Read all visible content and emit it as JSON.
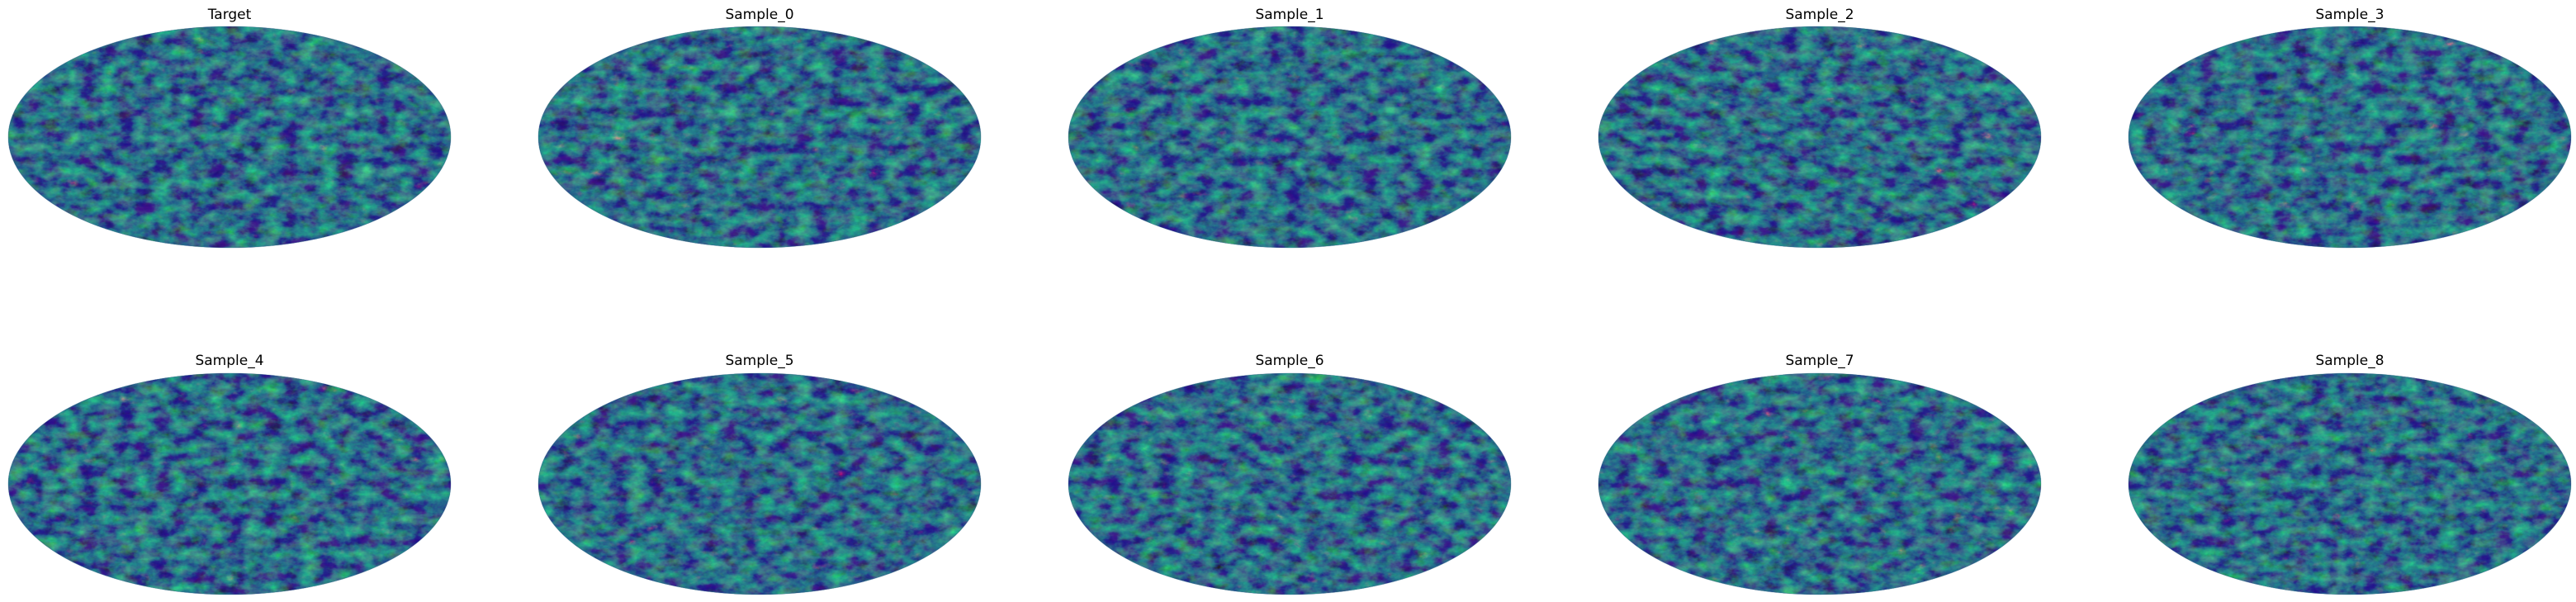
{
  "figure": {
    "colormap": "viridis",
    "projection": "mollweide",
    "panels": [
      {
        "title": "Target"
      },
      {
        "title": "Sample_0"
      },
      {
        "title": "Sample_1"
      },
      {
        "title": "Sample_2"
      },
      {
        "title": "Sample_3"
      },
      {
        "title": "Sample_4"
      },
      {
        "title": "Sample_5"
      },
      {
        "title": "Sample_6"
      },
      {
        "title": "Sample_7"
      },
      {
        "title": "Sample_8"
      }
    ]
  },
  "colors": {
    "viridis_low": "#3b0f5a",
    "viridis_mid": "#2a6f8e",
    "viridis_teal": "#21918c",
    "viridis_green": "#3fbc73",
    "viridis_high": "#d2e21b",
    "background": "#ffffff",
    "title_text": "#000000"
  }
}
